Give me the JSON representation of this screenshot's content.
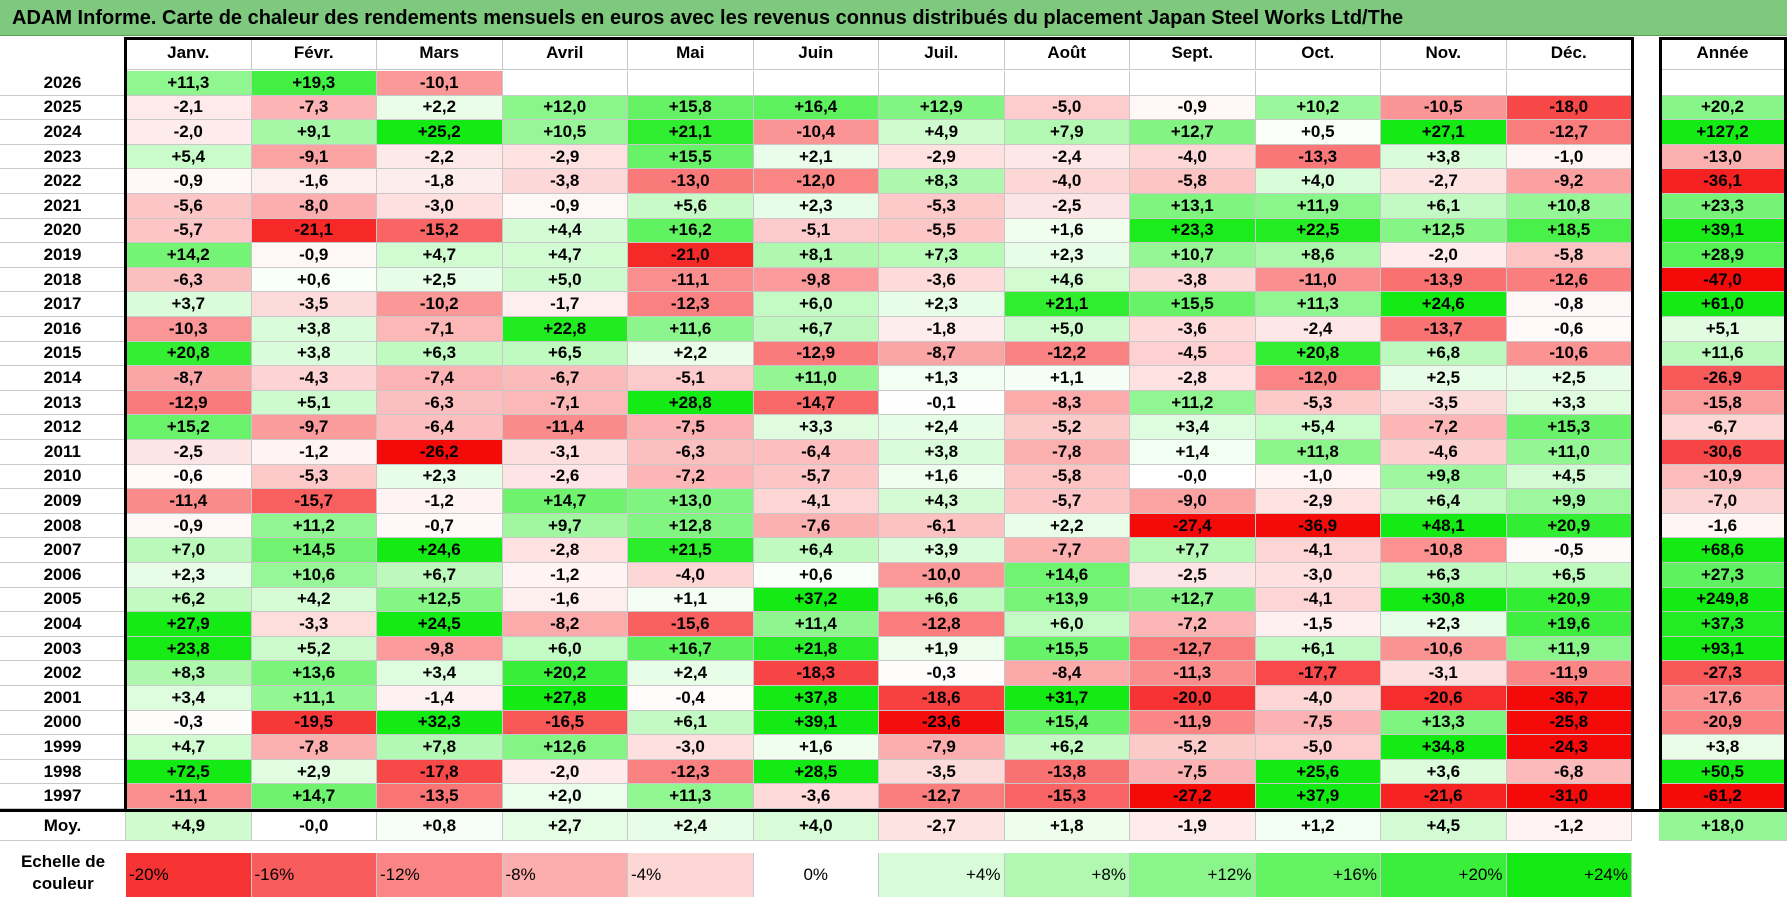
{
  "title": "ADAM Informe. Carte de chaleur des rendements mensuels en euros avec les revenus connus distribués du placement Japan Steel Works Ltd/The",
  "chart_data": {
    "type": "heatmap",
    "title": "ADAM Informe. Carte de chaleur des rendements mensuels en euros avec les revenus connus distribués du placement Japan Steel Works Ltd/The",
    "months": [
      "Janv.",
      "Févr.",
      "Mars",
      "Avril",
      "Mai",
      "Juin",
      "Juil.",
      "Août",
      "Sept.",
      "Oct.",
      "Nov.",
      "Déc."
    ],
    "year_header": "Année",
    "avg_label": "Moy.",
    "rows": [
      {
        "year": "2026",
        "values": [
          "+11,3",
          "+19,3",
          "-10,1",
          "",
          "",
          "",
          "",
          "",
          "",
          "",
          "",
          ""
        ],
        "annual": ""
      },
      {
        "year": "2025",
        "values": [
          "-2,1",
          "-7,3",
          "+2,2",
          "+12,0",
          "+15,8",
          "+16,4",
          "+12,9",
          "-5,0",
          "-0,9",
          "+10,2",
          "-10,5",
          "-18,0"
        ],
        "annual": "+20,2"
      },
      {
        "year": "2024",
        "values": [
          "-2,0",
          "+9,1",
          "+25,2",
          "+10,5",
          "+21,1",
          "-10,4",
          "+4,9",
          "+7,9",
          "+12,7",
          "+0,5",
          "+27,1",
          "-12,7"
        ],
        "annual": "+127,2"
      },
      {
        "year": "2023",
        "values": [
          "+5,4",
          "-9,1",
          "-2,2",
          "-2,9",
          "+15,5",
          "+2,1",
          "-2,9",
          "-2,4",
          "-4,0",
          "-13,3",
          "+3,8",
          "-1,0"
        ],
        "annual": "-13,0"
      },
      {
        "year": "2022",
        "values": [
          "-0,9",
          "-1,6",
          "-1,8",
          "-3,8",
          "-13,0",
          "-12,0",
          "+8,3",
          "-4,0",
          "-5,8",
          "+4,0",
          "-2,7",
          "-9,2"
        ],
        "annual": "-36,1"
      },
      {
        "year": "2021",
        "values": [
          "-5,6",
          "-8,0",
          "-3,0",
          "-0,9",
          "+5,6",
          "+2,3",
          "-5,3",
          "-2,5",
          "+13,1",
          "+11,9",
          "+6,1",
          "+10,8"
        ],
        "annual": "+23,3"
      },
      {
        "year": "2020",
        "values": [
          "-5,7",
          "-21,1",
          "-15,2",
          "+4,4",
          "+16,2",
          "-5,1",
          "-5,5",
          "+1,6",
          "+23,3",
          "+22,5",
          "+12,5",
          "+18,5"
        ],
        "annual": "+39,1"
      },
      {
        "year": "2019",
        "values": [
          "+14,2",
          "-0,9",
          "+4,7",
          "+4,7",
          "-21,0",
          "+8,1",
          "+7,3",
          "+2,3",
          "+10,7",
          "+8,6",
          "-2,0",
          "-5,8"
        ],
        "annual": "+28,9"
      },
      {
        "year": "2018",
        "values": [
          "-6,3",
          "+0,6",
          "+2,5",
          "+5,0",
          "-11,1",
          "-9,8",
          "-3,6",
          "+4,6",
          "-3,8",
          "-11,0",
          "-13,9",
          "-12,6"
        ],
        "annual": "-47,0"
      },
      {
        "year": "2017",
        "values": [
          "+3,7",
          "-3,5",
          "-10,2",
          "-1,7",
          "-12,3",
          "+6,0",
          "+2,3",
          "+21,1",
          "+15,5",
          "+11,3",
          "+24,6",
          "-0,8"
        ],
        "annual": "+61,0"
      },
      {
        "year": "2016",
        "values": [
          "-10,3",
          "+3,8",
          "-7,1",
          "+22,8",
          "+11,6",
          "+6,7",
          "-1,8",
          "+5,0",
          "-3,6",
          "-2,4",
          "-13,7",
          "-0,6"
        ],
        "annual": "+5,1"
      },
      {
        "year": "2015",
        "values": [
          "+20,8",
          "+3,8",
          "+6,3",
          "+6,5",
          "+2,2",
          "-12,9",
          "-8,7",
          "-12,2",
          "-4,5",
          "+20,8",
          "+6,8",
          "-10,6"
        ],
        "annual": "+11,6"
      },
      {
        "year": "2014",
        "values": [
          "-8,7",
          "-4,3",
          "-7,4",
          "-6,7",
          "-5,1",
          "+11,0",
          "+1,3",
          "+1,1",
          "-2,8",
          "-12,0",
          "+2,5",
          "+2,5"
        ],
        "annual": "-26,9"
      },
      {
        "year": "2013",
        "values": [
          "-12,9",
          "+5,1",
          "-6,3",
          "-7,1",
          "+28,8",
          "-14,7",
          "-0,1",
          "-8,3",
          "+11,2",
          "-5,3",
          "-3,5",
          "+3,3"
        ],
        "annual": "-15,8"
      },
      {
        "year": "2012",
        "values": [
          "+15,2",
          "-9,7",
          "-6,4",
          "-11,4",
          "-7,5",
          "+3,3",
          "+2,4",
          "-5,2",
          "+3,4",
          "+5,4",
          "-7,2",
          "+15,3"
        ],
        "annual": "-6,7"
      },
      {
        "year": "2011",
        "values": [
          "-2,5",
          "-1,2",
          "-26,2",
          "-3,1",
          "-6,3",
          "-6,4",
          "+3,8",
          "-7,8",
          "+1,4",
          "+11,8",
          "-4,6",
          "+11,0"
        ],
        "annual": "-30,6"
      },
      {
        "year": "2010",
        "values": [
          "-0,6",
          "-5,3",
          "+2,3",
          "-2,6",
          "-7,2",
          "-5,7",
          "+1,6",
          "-5,8",
          "-0,0",
          "-1,0",
          "+9,8",
          "+4,5"
        ],
        "annual": "-10,9"
      },
      {
        "year": "2009",
        "values": [
          "-11,4",
          "-15,7",
          "-1,2",
          "+14,7",
          "+13,0",
          "-4,1",
          "+4,3",
          "-5,7",
          "-9,0",
          "-2,9",
          "+6,4",
          "+9,9"
        ],
        "annual": "-7,0"
      },
      {
        "year": "2008",
        "values": [
          "-0,9",
          "+11,2",
          "-0,7",
          "+9,7",
          "+12,8",
          "-7,6",
          "-6,1",
          "+2,2",
          "-27,4",
          "-36,9",
          "+48,1",
          "+20,9"
        ],
        "annual": "-1,6"
      },
      {
        "year": "2007",
        "values": [
          "+7,0",
          "+14,5",
          "+24,6",
          "-2,8",
          "+21,5",
          "+6,4",
          "+3,9",
          "-7,7",
          "+7,7",
          "-4,1",
          "-10,8",
          "-0,5"
        ],
        "annual": "+68,6"
      },
      {
        "year": "2006",
        "values": [
          "+2,3",
          "+10,6",
          "+6,7",
          "-1,2",
          "-4,0",
          "+0,6",
          "-10,0",
          "+14,6",
          "-2,5",
          "-3,0",
          "+6,3",
          "+6,5"
        ],
        "annual": "+27,3"
      },
      {
        "year": "2005",
        "values": [
          "+6,2",
          "+4,2",
          "+12,5",
          "-1,6",
          "+1,1",
          "+37,2",
          "+6,6",
          "+13,9",
          "+12,7",
          "-4,1",
          "+30,8",
          "+20,9"
        ],
        "annual": "+249,8"
      },
      {
        "year": "2004",
        "values": [
          "+27,9",
          "-3,3",
          "+24,5",
          "-8,2",
          "-15,6",
          "+11,4",
          "-12,8",
          "+6,0",
          "-7,2",
          "-1,5",
          "+2,3",
          "+19,6"
        ],
        "annual": "+37,3"
      },
      {
        "year": "2003",
        "values": [
          "+23,8",
          "+5,2",
          "-9,8",
          "+6,0",
          "+16,7",
          "+21,8",
          "+1,9",
          "+15,5",
          "-12,7",
          "+6,1",
          "-10,6",
          "+11,9"
        ],
        "annual": "+93,1"
      },
      {
        "year": "2002",
        "values": [
          "+8,3",
          "+13,6",
          "+3,4",
          "+20,2",
          "+2,4",
          "-18,3",
          "-0,3",
          "-8,4",
          "-11,3",
          "-17,7",
          "-3,1",
          "-11,9"
        ],
        "annual": "-27,3"
      },
      {
        "year": "2001",
        "values": [
          "+3,4",
          "+11,1",
          "-1,4",
          "+27,8",
          "-0,4",
          "+37,8",
          "-18,6",
          "+31,7",
          "-20,0",
          "-4,0",
          "-20,6",
          "-36,7"
        ],
        "annual": "-17,6"
      },
      {
        "year": "2000",
        "values": [
          "-0,3",
          "-19,5",
          "+32,3",
          "-16,5",
          "+6,1",
          "+39,1",
          "-23,6",
          "+15,4",
          "-11,9",
          "-7,5",
          "+13,3",
          "-25,8"
        ],
        "annual": "-20,9"
      },
      {
        "year": "1999",
        "values": [
          "+4,7",
          "-7,8",
          "+7,8",
          "+12,6",
          "-3,0",
          "+1,6",
          "-7,9",
          "+6,2",
          "-5,2",
          "-5,0",
          "+34,8",
          "-24,3"
        ],
        "annual": "+3,8"
      },
      {
        "year": "1998",
        "values": [
          "+72,5",
          "+2,9",
          "-17,8",
          "-2,0",
          "-12,3",
          "+28,5",
          "-3,5",
          "-13,8",
          "-7,5",
          "+25,6",
          "+3,6",
          "-6,8"
        ],
        "annual": "+50,5"
      },
      {
        "year": "1997",
        "values": [
          "-11,1",
          "+14,7",
          "-13,5",
          "+2,0",
          "+11,3",
          "-3,6",
          "-12,7",
          "-15,3",
          "-27,2",
          "+37,9",
          "-21,6",
          "-31,0"
        ],
        "annual": "-61,2"
      }
    ],
    "average": {
      "values": [
        "+4,9",
        "-0,0",
        "+0,8",
        "+2,7",
        "+2,4",
        "+4,0",
        "-2,7",
        "+1,8",
        "-1,9",
        "+1,2",
        "+4,5",
        "-1,2"
      ],
      "annual": "+18,0"
    },
    "scale": {
      "label_line1": "Echelle de",
      "label_line2": "couleur",
      "stops": [
        "-20%",
        "-16%",
        "-12%",
        "-8%",
        "-4%",
        "0%",
        "+4%",
        "+8%",
        "+12%",
        "+16%",
        "+20%",
        "+24%"
      ]
    }
  }
}
